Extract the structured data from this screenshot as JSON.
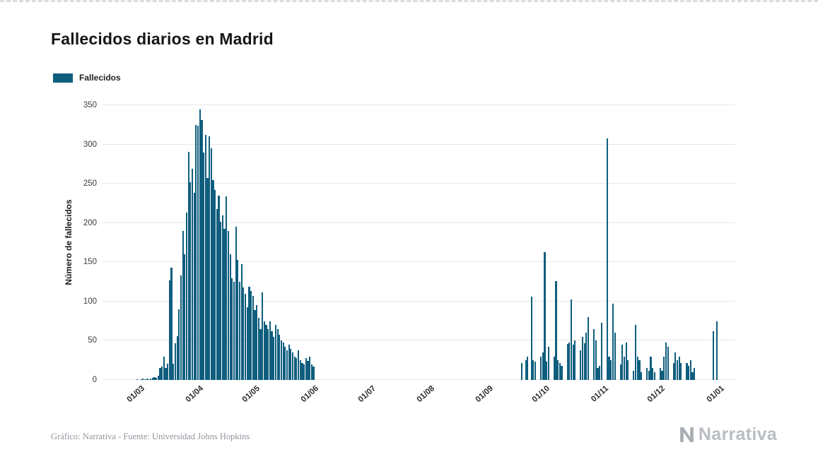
{
  "title": "Fallecidos diarios en Madrid",
  "legend": {
    "label": "Fallecidos",
    "color": "#0f5e7e"
  },
  "footer": {
    "source": "Gráfico: Narrativa - Fuente: Universidad Johns Hopkins",
    "brand": "Narrativa"
  },
  "chart_data": {
    "type": "bar",
    "title": "Fallecidos diarios en Madrid",
    "series_name": "Fallecidos",
    "xlabel": "",
    "ylabel": "Número de fallecidos",
    "ylim": [
      0,
      350
    ],
    "y_ticks": [
      0,
      50,
      100,
      150,
      200,
      250,
      300,
      350
    ],
    "grid": true,
    "legend_position": "top-left",
    "bar_color": "#0f5e7e",
    "x_tick_labels": [
      "01/03",
      "01/04",
      "01/05",
      "01/06",
      "01/07",
      "01/08",
      "01/09",
      "01/10",
      "01/11",
      "01/12",
      "01/01"
    ],
    "x_tick_indices": [
      20,
      51,
      81,
      112,
      142,
      173,
      204,
      234,
      265,
      295,
      326
    ],
    "values": [
      0,
      0,
      0,
      0,
      0,
      0,
      0,
      0,
      0,
      0,
      0,
      0,
      0,
      0,
      0,
      0,
      0,
      0,
      1,
      0,
      1,
      2,
      1,
      2,
      1,
      2,
      3,
      4,
      3,
      5,
      15,
      17,
      30,
      15,
      21,
      127,
      143,
      21,
      47,
      56,
      90,
      133,
      190,
      160,
      213,
      291,
      252,
      269,
      238,
      325,
      324,
      345,
      331,
      290,
      312,
      257,
      310,
      295,
      255,
      242,
      218,
      235,
      202,
      210,
      193,
      234,
      190,
      160,
      130,
      125,
      195,
      153,
      125,
      148,
      118,
      110,
      93,
      119,
      113,
      107,
      89,
      95,
      79,
      65,
      112,
      75,
      70,
      65,
      75,
      62,
      55,
      70,
      65,
      58,
      50,
      48,
      42,
      38,
      45,
      40,
      35,
      30,
      28,
      38,
      25,
      22,
      20,
      28,
      24,
      30,
      20,
      17,
      0,
      0,
      0,
      0,
      0,
      0,
      0,
      0,
      0,
      0,
      0,
      0,
      0,
      0,
      0,
      0,
      0,
      0,
      0,
      0,
      0,
      0,
      0,
      0,
      0,
      0,
      0,
      0,
      0,
      0,
      0,
      0,
      0,
      0,
      0,
      0,
      0,
      0,
      0,
      0,
      0,
      0,
      0,
      0,
      0,
      0,
      0,
      0,
      0,
      0,
      0,
      0,
      0,
      0,
      0,
      0,
      0,
      0,
      0,
      0,
      0,
      0,
      0,
      0,
      0,
      0,
      0,
      0,
      0,
      0,
      0,
      0,
      0,
      0,
      0,
      0,
      0,
      0,
      0,
      0,
      0,
      0,
      0,
      0,
      0,
      0,
      0,
      0,
      0,
      0,
      0,
      0,
      0,
      0,
      0,
      0,
      0,
      0,
      0,
      0,
      0,
      0,
      0,
      0,
      0,
      0,
      0,
      0,
      0,
      22,
      0,
      25,
      30,
      0,
      106,
      25,
      23,
      0,
      0,
      30,
      35,
      163,
      23,
      42,
      0,
      0,
      30,
      126,
      25,
      22,
      18,
      0,
      0,
      46,
      48,
      103,
      45,
      50,
      0,
      0,
      38,
      55,
      47,
      60,
      80,
      0,
      0,
      65,
      50,
      15,
      18,
      73,
      0,
      0,
      308,
      30,
      25,
      97,
      60,
      0,
      0,
      20,
      45,
      30,
      48,
      25,
      0,
      0,
      12,
      70,
      30,
      25,
      10,
      0,
      0,
      15,
      12,
      30,
      15,
      10,
      0,
      0,
      15,
      12,
      30,
      48,
      42,
      0,
      0,
      22,
      35,
      25,
      30,
      22,
      0,
      0,
      22,
      18,
      25,
      10,
      15,
      0,
      0,
      0,
      0,
      0,
      0,
      0,
      0,
      0,
      62,
      0,
      75,
      0,
      0,
      0,
      0,
      0,
      0,
      0,
      0,
      0
    ]
  }
}
